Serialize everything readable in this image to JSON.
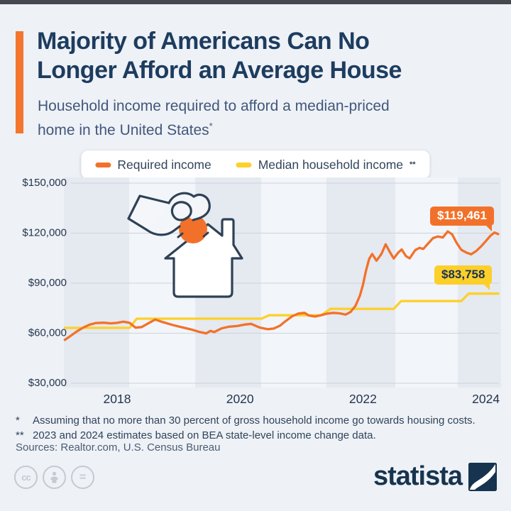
{
  "colors": {
    "background": "#eef1f6",
    "accent_orange": "#f2712a",
    "accent_yellow": "#fdd02a",
    "navy": "#1d3c5f",
    "band_dark": "#e5e9f0",
    "band_light": "#f2f5f9",
    "gridline": "#cdd4dd"
  },
  "header": {
    "title_line1": "Majority of Americans Can No",
    "title_line2": "Longer Afford an Average House",
    "subtitle_line1": "Household income required to afford a median-priced",
    "subtitle_line2": "home in the United States",
    "subtitle_sup": "*"
  },
  "legend": {
    "items": [
      {
        "label": "Required income",
        "marker_sup": "",
        "color": "#f2712a"
      },
      {
        "label": "Median household income",
        "marker_sup": "**",
        "color": "#fdd02a"
      }
    ]
  },
  "chart_data": {
    "type": "line",
    "title": "Household income required to afford a median-priced home in the United States",
    "grid": "horizontal",
    "legend_position": "top",
    "x_axis": {
      "range": [
        2017.15,
        2024.25
      ],
      "ticks": [
        {
          "year": 2018,
          "label": "2018"
        },
        {
          "year": 2020,
          "label": "2020"
        },
        {
          "year": 2022,
          "label": "2022"
        },
        {
          "year": 2024,
          "label": "2024"
        }
      ]
    },
    "y_axis": {
      "range": [
        30000,
        150000
      ],
      "ticks": [
        {
          "value": 150000,
          "label": "$150,000"
        },
        {
          "value": 120000,
          "label": "$120,000"
        },
        {
          "value": 90000,
          "label": "$90,000"
        },
        {
          "value": 60000,
          "label": "$60,000"
        },
        {
          "value": 30000,
          "label": "$30,000"
        }
      ]
    },
    "series": [
      {
        "name": "Required income",
        "color": "#f2712a",
        "end_label": "$119,461",
        "points": [
          [
            2017.15,
            56000
          ],
          [
            2017.25,
            58600
          ],
          [
            2017.35,
            61200
          ],
          [
            2017.45,
            63400
          ],
          [
            2017.55,
            65100
          ],
          [
            2017.65,
            66100
          ],
          [
            2017.78,
            66300
          ],
          [
            2017.9,
            65900
          ],
          [
            2018.0,
            66200
          ],
          [
            2018.1,
            66900
          ],
          [
            2018.2,
            66300
          ],
          [
            2018.3,
            63300
          ],
          [
            2018.4,
            63700
          ],
          [
            2018.5,
            65800
          ],
          [
            2018.62,
            68200
          ],
          [
            2018.75,
            66600
          ],
          [
            2018.9,
            65000
          ],
          [
            2019.05,
            63600
          ],
          [
            2019.2,
            62300
          ],
          [
            2019.35,
            60700
          ],
          [
            2019.45,
            59900
          ],
          [
            2019.52,
            61400
          ],
          [
            2019.58,
            60700
          ],
          [
            2019.7,
            62900
          ],
          [
            2019.82,
            63900
          ],
          [
            2019.95,
            64300
          ],
          [
            2020.08,
            65200
          ],
          [
            2020.18,
            65600
          ],
          [
            2020.32,
            63400
          ],
          [
            2020.45,
            62400
          ],
          [
            2020.55,
            62800
          ],
          [
            2020.65,
            64500
          ],
          [
            2020.75,
            67500
          ],
          [
            2020.85,
            70200
          ],
          [
            2020.95,
            71800
          ],
          [
            2021.05,
            72200
          ],
          [
            2021.12,
            70600
          ],
          [
            2021.22,
            70000
          ],
          [
            2021.32,
            70800
          ],
          [
            2021.42,
            71800
          ],
          [
            2021.52,
            72200
          ],
          [
            2021.62,
            71900
          ],
          [
            2021.72,
            71200
          ],
          [
            2021.8,
            72800
          ],
          [
            2021.88,
            76500
          ],
          [
            2021.95,
            82500
          ],
          [
            2022.0,
            89000
          ],
          [
            2022.05,
            97500
          ],
          [
            2022.1,
            104500
          ],
          [
            2022.15,
            107500
          ],
          [
            2022.22,
            103500
          ],
          [
            2022.3,
            107500
          ],
          [
            2022.37,
            113300
          ],
          [
            2022.44,
            108500
          ],
          [
            2022.5,
            104800
          ],
          [
            2022.57,
            108200
          ],
          [
            2022.63,
            110200
          ],
          [
            2022.7,
            106200
          ],
          [
            2022.76,
            104900
          ],
          [
            2022.85,
            109800
          ],
          [
            2022.92,
            111200
          ],
          [
            2022.98,
            110500
          ],
          [
            2023.06,
            113800
          ],
          [
            2023.14,
            117000
          ],
          [
            2023.22,
            118000
          ],
          [
            2023.3,
            117400
          ],
          [
            2023.38,
            121000
          ],
          [
            2023.45,
            119300
          ],
          [
            2023.53,
            113800
          ],
          [
            2023.6,
            110000
          ],
          [
            2023.68,
            108400
          ],
          [
            2023.76,
            107300
          ],
          [
            2023.84,
            109200
          ],
          [
            2023.92,
            112000
          ],
          [
            2023.99,
            114800
          ],
          [
            2024.07,
            118300
          ],
          [
            2024.14,
            120400
          ],
          [
            2024.2,
            119461
          ]
        ]
      },
      {
        "name": "Median household income",
        "color": "#fdd02a",
        "end_label": "$83,758",
        "points": [
          [
            2017.15,
            63179
          ],
          [
            2018.2,
            63179
          ],
          [
            2018.32,
            68703
          ],
          [
            2020.35,
            68703
          ],
          [
            2020.47,
            70784
          ],
          [
            2021.32,
            70784
          ],
          [
            2021.47,
            74580
          ],
          [
            2022.5,
            74580
          ],
          [
            2022.62,
            79260
          ],
          [
            2023.6,
            79260
          ],
          [
            2023.72,
            83758
          ],
          [
            2024.2,
            83758
          ]
        ]
      }
    ]
  },
  "annotations": {
    "required_income_label": "$119,461",
    "median_income_label": "$83,758"
  },
  "footnotes": {
    "line1_marker": "*",
    "line1_text": "Assuming that no more than 30 percent of gross household income go towards housing costs.",
    "line2_marker": "**",
    "line2_text": "2023 and 2024 estimates based on BEA state-level income change data."
  },
  "sources": {
    "text": "Sources: Realtor.com, U.S. Census Bureau"
  },
  "branding": {
    "wordmark": "statista"
  },
  "license": {
    "icons": [
      "cc-icon",
      "attribution-person-icon",
      "no-derivatives-icon"
    ]
  }
}
